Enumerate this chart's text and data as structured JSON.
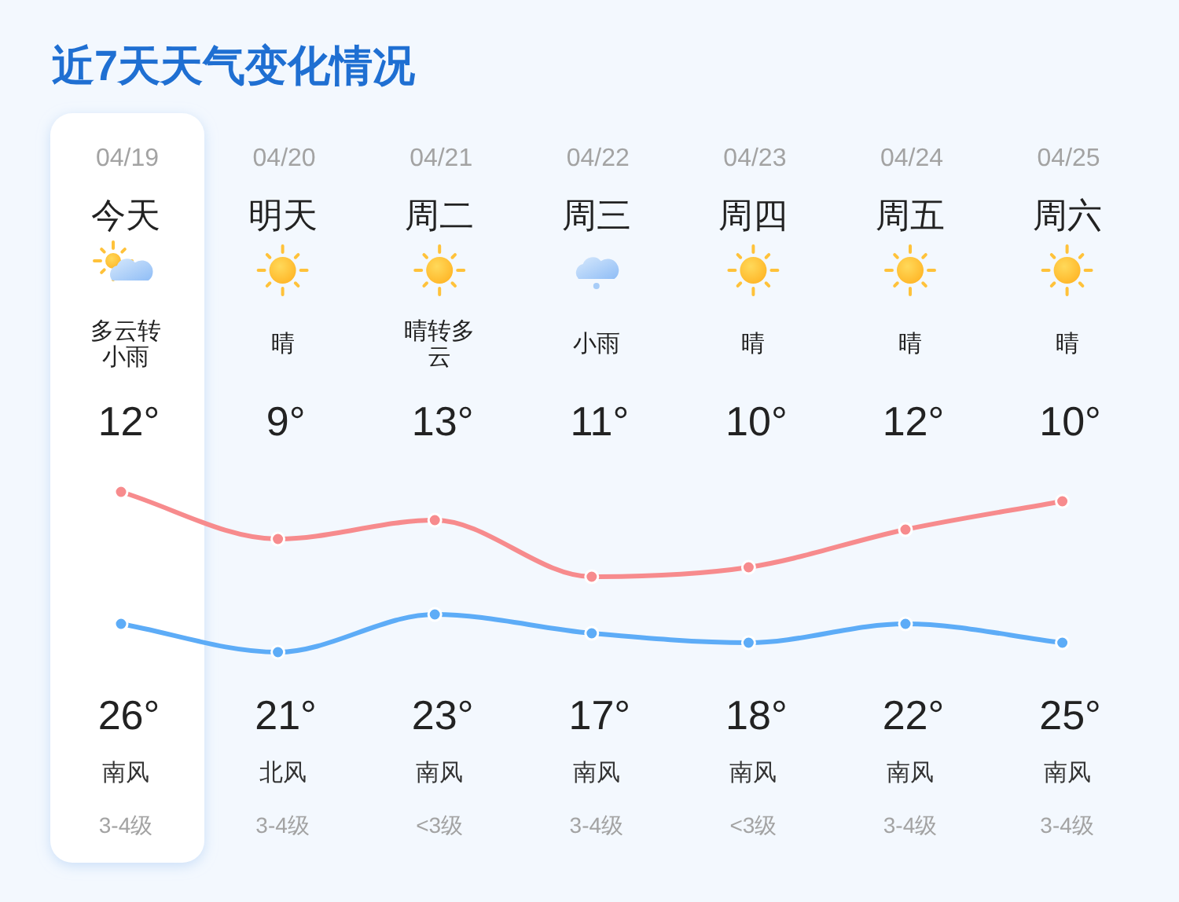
{
  "chart_data": {
    "type": "line",
    "title": "近7天天气变化情况",
    "categories": [
      "04/19",
      "04/20",
      "04/21",
      "04/22",
      "04/23",
      "04/24",
      "04/25"
    ],
    "series": [
      {
        "color": "#f78b8d",
        "values": [
          26,
          21,
          23,
          17,
          18,
          22,
          25
        ],
        "value_labels": [
          "26°",
          "21°",
          "23°",
          "17°",
          "18°",
          "22°",
          "25°"
        ]
      },
      {
        "color": "#5dacf7",
        "values": [
          12,
          9,
          13,
          11,
          10,
          12,
          10
        ],
        "value_labels": [
          "12°",
          "9°",
          "13°",
          "11°",
          "10°",
          "12°",
          "10°"
        ]
      }
    ],
    "marker": "circle",
    "line_style": "solid",
    "bands": [
      {
        "axis": "x",
        "from": "04/19",
        "to": "04/19",
        "color": "#ffffff"
      }
    ],
    "annotations": [
      "今天",
      "明天",
      "周二",
      "周三",
      "周四",
      "周五",
      "周六",
      "多云转小雨",
      "晴",
      "晴转多云",
      "小雨",
      "晴",
      "晴",
      "晴",
      "南风",
      "北风",
      "南风",
      "南风",
      "南风",
      "南风",
      "南风",
      "3-4级",
      "3-4级",
      "<3级",
      "3-4级",
      "<3级",
      "3-4级",
      "3-4级"
    ]
  }
}
